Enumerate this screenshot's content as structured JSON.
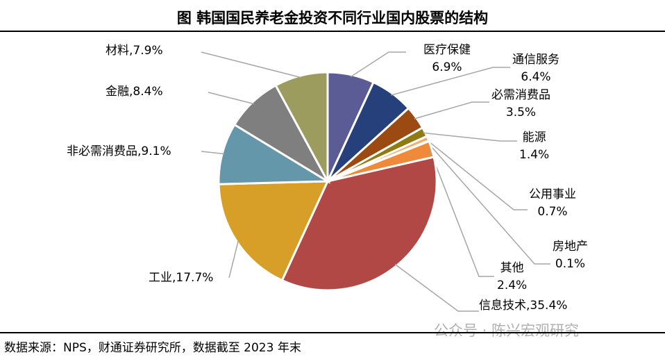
{
  "title": "图  韩国国民养老金投资不同行业国内股票的结构",
  "source": "数据来源：NPS，财通证券研究所，数据截至 2023 年末",
  "watermark": "公众号 · 陈兴宏观研究",
  "chart_data": {
    "type": "pie",
    "title": "图  韩国国民养老金投资不同行业国内股票的结构",
    "start": "top-clockwise",
    "slices": [
      {
        "name": "医疗保健",
        "value": 6.9,
        "label": "6.9%",
        "color": "#5b5b96"
      },
      {
        "name": "通信服务",
        "value": 6.4,
        "label": "6.4%",
        "color": "#26407c"
      },
      {
        "name": "必需消费品",
        "value": 3.5,
        "label": "3.5%",
        "color": "#9b4a12"
      },
      {
        "name": "能源",
        "value": 1.4,
        "label": "1.4%",
        "color": "#8e7b12"
      },
      {
        "name": "公用事业",
        "value": 0.7,
        "label": "0.7%",
        "color": "#efae72"
      },
      {
        "name": "房地产",
        "value": 0.1,
        "label": "0.1%",
        "color": "#d0d0d0"
      },
      {
        "name": "其他",
        "value": 2.4,
        "label": "2.4%",
        "color": "#ef8a3a"
      },
      {
        "name": "信息技术",
        "value": 35.4,
        "label": "35.4%",
        "color": "#b24846"
      },
      {
        "name": "工业",
        "value": 17.7,
        "label": "17.7%",
        "color": "#d89f28"
      },
      {
        "name": "非必需消费品",
        "value": 9.1,
        "label": "9.1%",
        "color": "#6497aa"
      },
      {
        "name": "金融",
        "value": 8.4,
        "label": "8.4%",
        "color": "#7f7f7f"
      },
      {
        "name": "材料",
        "value": 7.9,
        "label": "7.9%",
        "color": "#9d9c5f"
      }
    ]
  }
}
